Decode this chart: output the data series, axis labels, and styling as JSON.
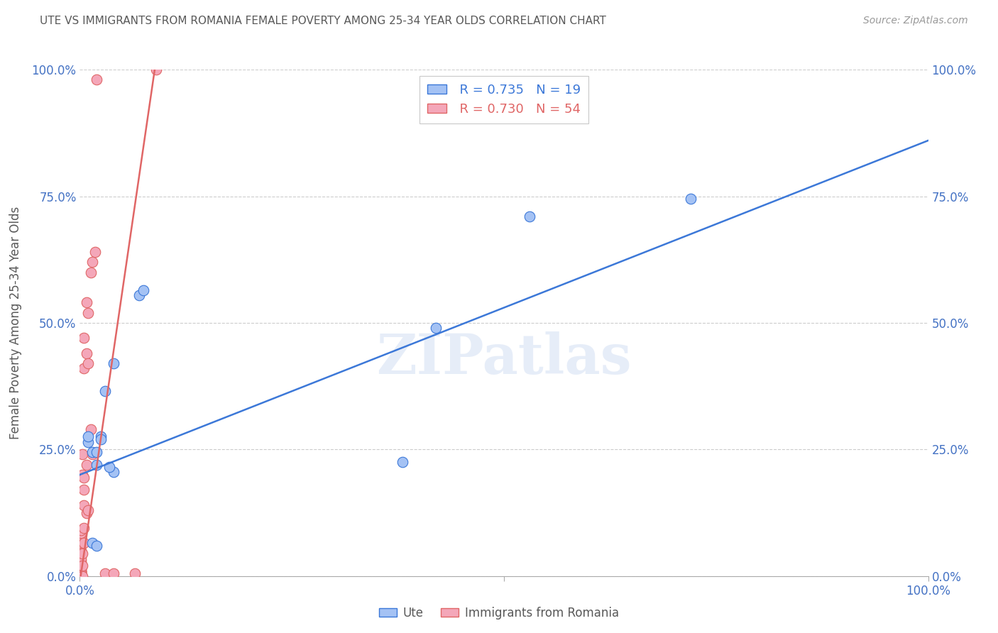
{
  "title": "UTE VS IMMIGRANTS FROM ROMANIA FEMALE POVERTY AMONG 25-34 YEAR OLDS CORRELATION CHART",
  "source": "Source: ZipAtlas.com",
  "ylabel": "Female Poverty Among 25-34 Year Olds",
  "xlabel": "",
  "watermark": "ZIPatlas",
  "legend_blue_r": "R = 0.735",
  "legend_blue_n": "N = 19",
  "legend_pink_r": "R = 0.730",
  "legend_pink_n": "N = 54",
  "legend_blue_label": "Ute",
  "legend_pink_label": "Immigrants from Romania",
  "xlim": [
    0,
    1.0
  ],
  "ylim": [
    0,
    1.0
  ],
  "blue_color": "#a4c2f4",
  "pink_color": "#f4a7b9",
  "blue_line_color": "#3c78d8",
  "pink_line_color": "#e06666",
  "title_color": "#595959",
  "axis_color": "#4472c4",
  "ylabel_color": "#595959",
  "grid_color": "#cccccc",
  "blue_scatter_x": [
    0.01,
    0.01,
    0.015,
    0.02,
    0.02,
    0.025,
    0.025,
    0.03,
    0.04,
    0.04,
    0.07,
    0.075,
    0.38,
    0.42,
    0.53,
    0.72,
    0.015,
    0.02,
    0.035
  ],
  "blue_scatter_y": [
    0.265,
    0.275,
    0.245,
    0.22,
    0.245,
    0.275,
    0.27,
    0.365,
    0.205,
    0.42,
    0.555,
    0.565,
    0.225,
    0.49,
    0.71,
    0.745,
    0.065,
    0.06,
    0.215
  ],
  "pink_scatter_x": [
    0.001,
    0.001,
    0.001,
    0.001,
    0.001,
    0.001,
    0.001,
    0.001,
    0.001,
    0.001,
    0.001,
    0.001,
    0.001,
    0.001,
    0.001,
    0.001,
    0.001,
    0.001,
    0.001,
    0.001,
    0.001,
    0.001,
    0.001,
    0.001,
    0.001,
    0.003,
    0.003,
    0.003,
    0.003,
    0.003,
    0.005,
    0.005,
    0.005,
    0.005,
    0.005,
    0.005,
    0.005,
    0.008,
    0.008,
    0.008,
    0.008,
    0.01,
    0.01,
    0.01,
    0.013,
    0.013,
    0.015,
    0.015,
    0.018,
    0.02,
    0.03,
    0.04,
    0.065,
    0.09
  ],
  "pink_scatter_y": [
    0.0,
    0.0,
    0.0,
    0.005,
    0.005,
    0.005,
    0.01,
    0.01,
    0.01,
    0.01,
    0.015,
    0.015,
    0.02,
    0.02,
    0.02,
    0.025,
    0.03,
    0.035,
    0.05,
    0.06,
    0.065,
    0.07,
    0.075,
    0.085,
    0.09,
    0.0,
    0.02,
    0.045,
    0.2,
    0.24,
    0.065,
    0.095,
    0.14,
    0.41,
    0.17,
    0.195,
    0.47,
    0.125,
    0.22,
    0.44,
    0.54,
    0.13,
    0.42,
    0.52,
    0.29,
    0.6,
    0.62,
    0.24,
    0.64,
    0.98,
    0.005,
    0.005,
    0.005,
    1.0
  ],
  "blue_line_x0": 0.0,
  "blue_line_y0": 0.2,
  "blue_line_x1": 1.0,
  "blue_line_y1": 0.86,
  "pink_line_x0": 0.001,
  "pink_line_y0": 0.0,
  "pink_line_x1": 0.09,
  "pink_line_y1": 1.02,
  "ytick_labels": [
    "0.0%",
    "25.0%",
    "50.0%",
    "75.0%",
    "100.0%"
  ],
  "ytick_values": [
    0.0,
    0.25,
    0.5,
    0.75,
    1.0
  ],
  "xtick_labels_left": [
    "0.0%"
  ],
  "xtick_values_left": [
    0.0
  ],
  "xtick_labels_right": [
    "100.0%"
  ],
  "xtick_values_right": [
    1.0
  ]
}
